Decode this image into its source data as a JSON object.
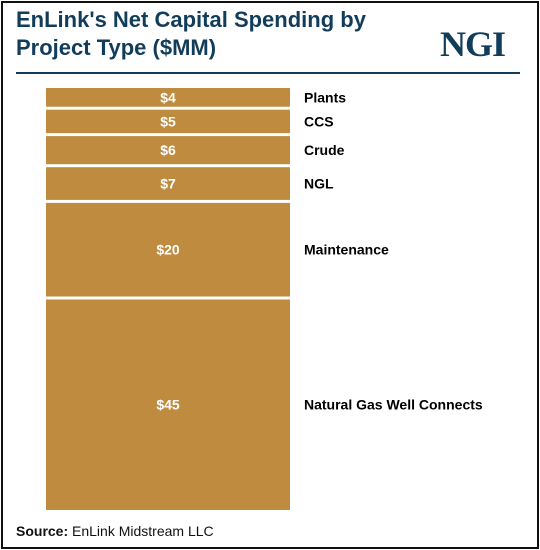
{
  "header": {
    "title": "EnLink's Net Capital Spending by Project Type ($MM)",
    "logo_text": "NGI"
  },
  "footer": {
    "source_label": "Source:",
    "source_text": "EnLink Midstream LLC"
  },
  "colors": {
    "bar": "#bf8b3f",
    "bar_label": "#ffffff",
    "title": "#123d5a",
    "category_label": "#000000"
  },
  "chart_data": {
    "type": "bar",
    "stacked": true,
    "orientation": "vertical",
    "categories": [
      "Plants",
      "CCS",
      "Crude",
      "NGL",
      "Maintenance",
      "Natural Gas Well Connects"
    ],
    "values": [
      4,
      5,
      6,
      7,
      20,
      45
    ],
    "data_labels": [
      "$4",
      "$5",
      "$6",
      "$7",
      "$20",
      "$45"
    ],
    "title": "EnLink's Net Capital Spending by Project Type ($MM)",
    "xlabel": "",
    "ylabel": "",
    "grid": false,
    "legend": "none"
  }
}
